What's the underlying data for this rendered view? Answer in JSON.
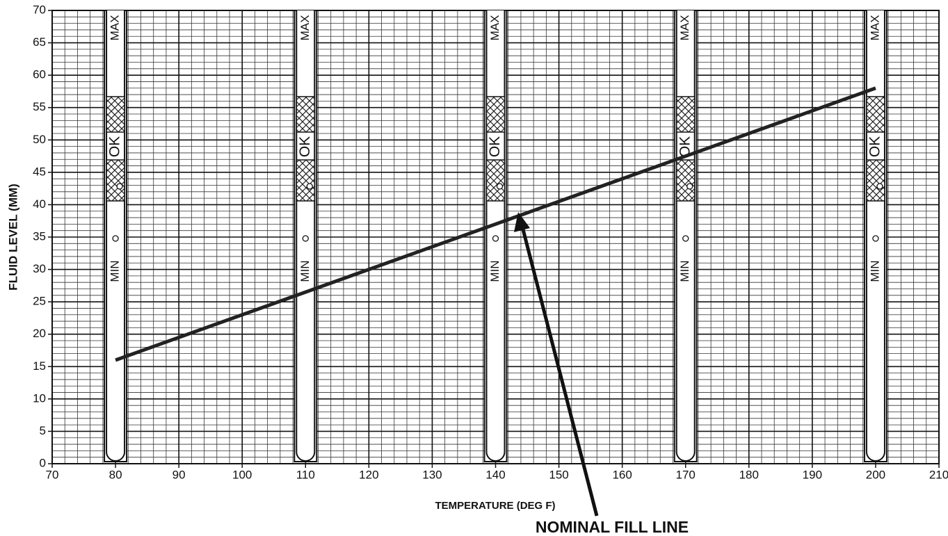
{
  "chart_data": {
    "type": "line",
    "y_label": "FLUID LEVEL (MM)",
    "x_label": "TEMPERATURE (DEG F)",
    "x": [
      80,
      200
    ],
    "series": [
      {
        "name": "NOMINAL FILL LINE",
        "color": "#222222",
        "values": [
          16,
          58
        ]
      }
    ],
    "xlim": [
      70,
      210
    ],
    "xticks": [
      70,
      80,
      90,
      100,
      110,
      120,
      130,
      140,
      150,
      160,
      170,
      180,
      190,
      200,
      210
    ],
    "ylim": [
      0,
      70
    ],
    "yticks": [
      0,
      5,
      10,
      15,
      20,
      25,
      30,
      35,
      40,
      45,
      50,
      55,
      60,
      65,
      70
    ],
    "grid": true,
    "minor_grid": {
      "x": 2,
      "y": 1
    },
    "dipsticks": {
      "x": [
        80,
        110,
        140,
        170,
        200
      ],
      "max": "MAX",
      "ok": "OK",
      "min": "MIN"
    }
  }
}
